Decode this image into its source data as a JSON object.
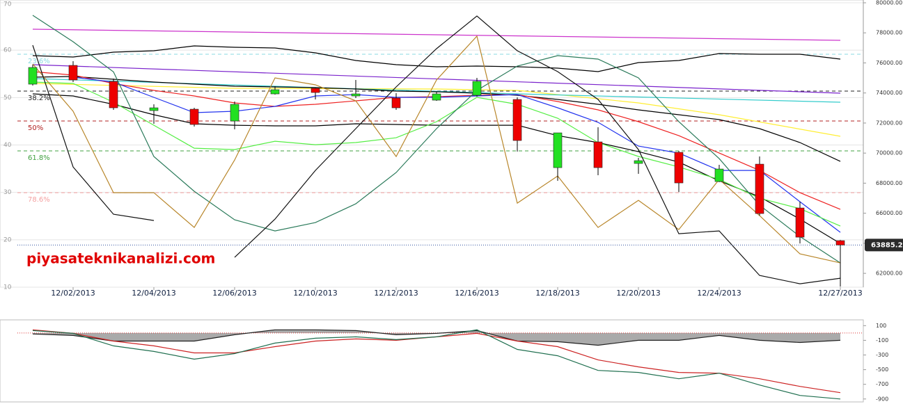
{
  "watermark": "piyasateknikanalizi.com",
  "chart_data": [
    {
      "type": "candlestick",
      "categories": [
        null,
        "12/02/2013",
        null,
        "12/04/2013",
        null,
        "12/06/2013",
        null,
        "12/10/2013",
        null,
        "12/12/2013",
        null,
        "12/16/2013",
        null,
        "12/18/2013",
        null,
        "12/20/2013",
        null,
        "12/24/2013",
        null,
        null,
        "12/27/2013"
      ],
      "open": [
        74586,
        75836,
        74771,
        72828,
        72921,
        72134,
        73939,
        74309,
        73800,
        73661,
        73522,
        73846,
        73568,
        69034,
        70746,
        69312,
        70052,
        68109,
        69265,
        66350,
        64176
      ],
      "high": [
        75882,
        76113,
        74957,
        73245,
        73013,
        73430,
        74448,
        74355,
        74864,
        73985,
        74077,
        75003,
        73707,
        71347,
        71718,
        69682,
        70144,
        69219,
        69774,
        66767,
        64222
      ],
      "low": [
        74494,
        74725,
        72874,
        71949,
        71764,
        71579,
        73892,
        73568,
        73661,
        72874,
        73476,
        73754,
        70098,
        68155,
        68525,
        68618,
        67414,
        68063,
        65842,
        63990,
        61122
      ],
      "close": [
        75697,
        74864,
        73013,
        73013,
        71903,
        73245,
        74216,
        74031,
        73939,
        73013,
        73939,
        74771,
        70838,
        71347,
        69034,
        69497,
        68016,
        68941,
        65980,
        64407,
        63885
      ],
      "up_color": "#22e022",
      "down_color": "#ee0000",
      "ylim": [
        61080,
        80000
      ],
      "yticks": [
        {
          "value": 62000,
          "label": "62000.00"
        },
        {
          "value": 64000,
          "label": "64000.00"
        },
        {
          "value": 66000,
          "label": "66000.00"
        },
        {
          "value": 68000,
          "label": "68000.00"
        },
        {
          "value": 70000,
          "label": "70000.00"
        },
        {
          "value": 72000,
          "label": "72000.00"
        },
        {
          "value": 74000,
          "label": "74000.00"
        },
        {
          "value": 76000,
          "label": "76000.00"
        },
        {
          "value": 78000,
          "label": "78000.00"
        },
        {
          "value": 80000,
          "label": "80000.00"
        }
      ],
      "y2lim": [
        10,
        70
      ],
      "y2ticks": [
        10,
        20,
        30,
        40,
        50,
        60,
        70
      ],
      "grid": true,
      "fib_levels": [
        {
          "label": "23.6%",
          "value": 76576,
          "color": "#88d8e0"
        },
        {
          "label": "38.2%",
          "value": 74124,
          "color": "#222222"
        },
        {
          "label": "50%",
          "value": 72134,
          "color": "#b02020"
        },
        {
          "label": "61.8%",
          "value": 70144,
          "color": "#40a040"
        },
        {
          "label": "78.6%",
          "value": 67368,
          "color": "#f4a0a0"
        }
      ],
      "last_price": 63885.2,
      "last_price_color": "#2a2a2a",
      "series": [
        {
          "color": "#cc33cc",
          "x": [
            0,
            20
          ],
          "values": [
            78242,
            77501
          ]
        },
        {
          "color": "#7a22cc",
          "x": [
            0,
            20
          ],
          "values": [
            75882,
            73985
          ]
        },
        {
          "color": "#ffee33",
          "x": [
            0,
            5,
            10,
            12,
            15,
            17,
            20
          ],
          "values": [
            74633,
            74309,
            74262,
            74170,
            73337,
            72550,
            71116
          ]
        },
        {
          "color": "#33cccc",
          "x": [
            0,
            12,
            20
          ],
          "values": [
            74956,
            73939,
            73383
          ]
        },
        {
          "color": "#000000",
          "values": [
            76483,
            76391,
            76715,
            76807,
            77131,
            77039,
            76992,
            76668,
            76160,
            75882,
            75743,
            75789,
            75743,
            75651,
            75419,
            76021,
            76160,
            76622,
            76576,
            76576,
            76252
          ]
        },
        {
          "color": "#000000",
          "values": [
            75049,
            75095,
            74910,
            74725,
            74586,
            74448,
            74401,
            74355,
            74262,
            74124,
            74077,
            73985,
            73846,
            73568,
            73244,
            72874,
            72550,
            72227,
            71625,
            70700,
            69450
          ]
        },
        {
          "color": "#000000",
          "values": [
            73939,
            73800,
            73244,
            72550,
            71949,
            71856,
            71810,
            71810,
            71949,
            71903,
            71856,
            71856,
            71856,
            71162,
            70700,
            70098,
            69404,
            68155,
            67091,
            65610,
            63990
          ]
        },
        {
          "color": "#ee2222",
          "values": [
            75419,
            75188,
            74633,
            74170,
            73800,
            73337,
            73106,
            73244,
            73476,
            73707,
            73753,
            73846,
            73892,
            73430,
            72874,
            72088,
            71162,
            70004,
            68849,
            67368,
            66258
          ]
        },
        {
          "color": "#2233ee",
          "values": [
            null,
            75049,
            74725,
            73707,
            72689,
            72782,
            73106,
            73800,
            73892,
            73707,
            73707,
            73800,
            73892,
            73013,
            72049,
            70468,
            70004,
            68849,
            68849,
            66767,
            64731
          ]
        },
        {
          "color": "#55ee44",
          "values": [
            74725,
            74633,
            73383,
            71856,
            70329,
            70237,
            70792,
            70560,
            70700,
            71023,
            72088,
            73707,
            73244,
            72319,
            70700,
            69775,
            69080,
            68247,
            66998,
            66304,
            65147
          ]
        },
        {
          "color": "#2a7a5a",
          "values": [
            79167,
            77409,
            75401,
            69774,
            67461,
            65564,
            64823,
            65379,
            66628,
            68710,
            71625,
            74170,
            75789,
            76483,
            76252,
            75003,
            72088,
            69635,
            66535,
            64453,
            62695
          ]
        },
        {
          "color": "#b8862a",
          "values": [
            75928,
            72782,
            67368,
            67368,
            65055,
            69543,
            75003,
            74541,
            73476,
            69774,
            74864,
            77779,
            66674,
            68479,
            65055,
            66859,
            64916,
            68247,
            65841,
            63296,
            62695
          ]
        },
        {
          "color": "#111111",
          "values": [
            77177,
            69080,
            65934,
            65517,
            null,
            63065,
            65610,
            68849,
            71625,
            74401,
            76946,
            79121,
            76807,
            75419,
            73568,
            70237,
            64638,
            64823,
            61862,
            61307,
            61677
          ]
        }
      ]
    },
    {
      "type": "line",
      "ylim": [
        -940,
        160
      ],
      "yticks": [
        100,
        -100,
        -300,
        -500,
        -700,
        -900
      ],
      "series": [
        {
          "color": "#222222",
          "fill": "#aaaaaa",
          "values": [
            -14,
            -33,
            -110,
            -110,
            -110,
            -24,
            43,
            43,
            33,
            -24,
            -5,
            33,
            -110,
            -119,
            -167,
            -100,
            -100,
            -33,
            -100,
            -129,
            -100
          ]
        },
        {
          "color": "#cc2222",
          "values": [
            43,
            -5,
            -110,
            -176,
            -271,
            -271,
            -186,
            -110,
            -81,
            -100,
            -52,
            -5,
            -110,
            -186,
            -367,
            -462,
            -538,
            -548,
            -624,
            -729,
            -814
          ]
        },
        {
          "color": "#1e6e4e",
          "values": [
            33,
            -5,
            -176,
            -252,
            -357,
            -281,
            -138,
            -71,
            -52,
            -90,
            -52,
            43,
            -224,
            -310,
            -510,
            -538,
            -624,
            -548,
            -710,
            -852,
            -900
          ]
        }
      ]
    }
  ]
}
